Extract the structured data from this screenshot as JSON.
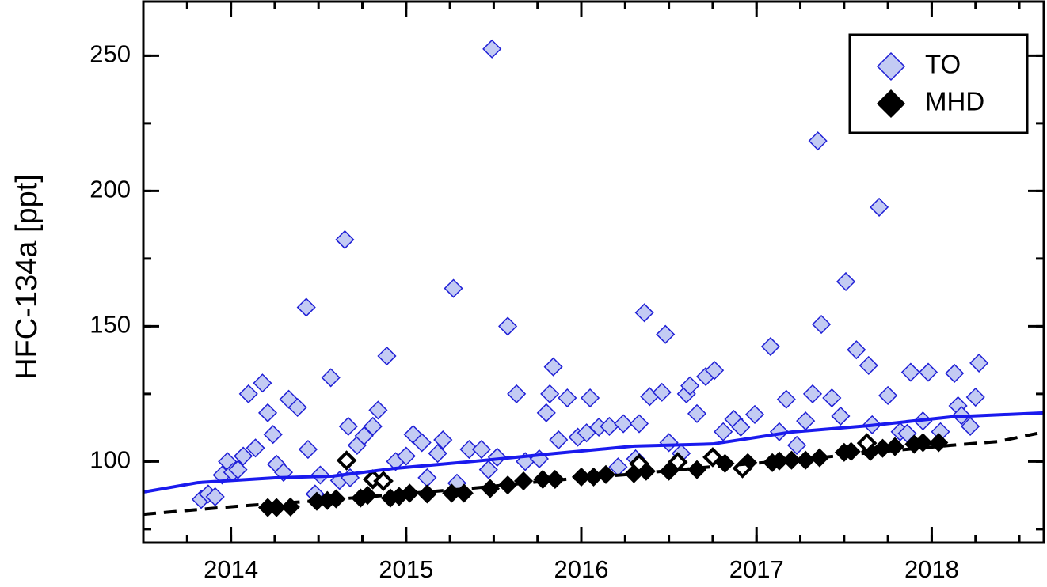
{
  "chart_data": {
    "type": "scatter",
    "y_label": "HFC-134a [ppt]",
    "xlim": [
      2013.5,
      2018.64
    ],
    "xticks": [
      2014,
      2015,
      2016,
      2017,
      2018
    ],
    "ylim": [
      70,
      270
    ],
    "yticks": [
      100,
      150,
      200,
      250
    ],
    "legend": "upper right",
    "series": [
      {
        "name": "TO",
        "kind": "marker",
        "marker": "diamond",
        "color": "#1f1fd6",
        "fill": "#c3cbf3",
        "x": [
          2013.83,
          2013.87,
          2013.91,
          2013.95,
          2013.98,
          2014.01,
          2014.04,
          2014.07,
          2014.1,
          2014.14,
          2014.18,
          2014.21,
          2014.24,
          2014.26,
          2014.3,
          2014.33,
          2014.38,
          2014.43,
          2014.44,
          2014.48,
          2014.51,
          2014.57,
          2014.62,
          2014.65,
          2014.67,
          2014.68,
          2014.72,
          2014.76,
          2014.81,
          2014.84,
          2014.89,
          2014.94,
          2015.0,
          2015.04,
          2015.09,
          2015.12,
          2015.18,
          2015.21,
          2015.27,
          2015.29,
          2015.36,
          2015.43,
          2015.47,
          2015.49,
          2015.52,
          2015.58,
          2015.63,
          2015.68,
          2015.76,
          2015.8,
          2015.82,
          2015.84,
          2015.87,
          2015.92,
          2015.98,
          2016.03,
          2016.05,
          2016.1,
          2016.16,
          2016.21,
          2016.24,
          2016.31,
          2016.33,
          2016.36,
          2016.39,
          2016.46,
          2016.48,
          2016.5,
          2016.57,
          2016.6,
          2016.62,
          2016.66,
          2016.71,
          2016.76,
          2016.81,
          2016.87,
          2016.91,
          2016.99,
          2017.08,
          2017.13,
          2017.17,
          2017.23,
          2017.28,
          2017.32,
          2017.35,
          2017.37,
          2017.43,
          2017.48,
          2017.51,
          2017.57,
          2017.64,
          2017.66,
          2017.7,
          2017.75,
          2017.82,
          2017.86,
          2017.88,
          2017.95,
          2017.98,
          2018.05,
          2018.13,
          2018.15,
          2018.17,
          2018.22,
          2018.25,
          2018.27
        ],
        "values": [
          86,
          88,
          87,
          95,
          100,
          96,
          97,
          102,
          125,
          105,
          129,
          118,
          110,
          99,
          96,
          123,
          120,
          157,
          104.5,
          88,
          95,
          131,
          93,
          182,
          113,
          94,
          106,
          109.5,
          113,
          119,
          139,
          100,
          102,
          110,
          107,
          94,
          103,
          108,
          164,
          92,
          104.5,
          104.5,
          97,
          252.5,
          101.6,
          150,
          125,
          100,
          101,
          118,
          125,
          135,
          108,
          123.5,
          109,
          110.6,
          123.5,
          112.7,
          113,
          98,
          114,
          101,
          114,
          155,
          124,
          125.6,
          147,
          107,
          103,
          125,
          128,
          117.7,
          131.4,
          133.7,
          111,
          115.6,
          112.7,
          117.4,
          142.5,
          111,
          123,
          106,
          115,
          125,
          218.5,
          150.7,
          123.5,
          116.8,
          166.5,
          141.3,
          135.5,
          113.6,
          194,
          124.4,
          111,
          110.4,
          133,
          115,
          133,
          111,
          132.6,
          120.6,
          117,
          113,
          123.8,
          136.4
        ]
      },
      {
        "name": "MHD",
        "kind": "marker",
        "marker": "diamond",
        "color": "#000000",
        "fill": "#000000",
        "x": [
          2014.21,
          2014.26,
          2014.34,
          2014.49,
          2014.55,
          2014.6,
          2014.74,
          2014.78,
          2014.91,
          2014.96,
          2015.02,
          2015.12,
          2015.26,
          2015.33,
          2015.48,
          2015.58,
          2015.67,
          2015.78,
          2015.85,
          2016.0,
          2016.07,
          2016.14,
          2016.3,
          2016.37,
          2016.5,
          2016.66,
          2016.82,
          2016.95,
          2017.09,
          2017.13,
          2017.2,
          2017.28,
          2017.36,
          2017.5,
          2017.54,
          2017.65,
          2017.72,
          2017.79,
          2017.9,
          2017.95,
          2018.04
        ],
        "values": [
          83,
          83,
          83.2,
          85.3,
          85.6,
          86.2,
          86.5,
          87.5,
          86.5,
          87.1,
          88.3,
          88,
          88.3,
          88.3,
          90,
          91.3,
          92.8,
          93.4,
          93.4,
          94.3,
          94.3,
          95.2,
          95.5,
          96.4,
          96.4,
          97,
          99.3,
          99.6,
          99.6,
          100.2,
          100.5,
          100.5,
          101.4,
          103.4,
          103.7,
          103.7,
          104.9,
          105.5,
          106.4,
          107,
          107
        ]
      },
      {
        "kind": "marker",
        "marker": "open-diamond",
        "color": "#000000",
        "fill": "#ffffff",
        "x": [
          2014.66,
          2014.81,
          2014.87,
          2016.33,
          2016.55,
          2016.75,
          2016.92,
          2017.63
        ],
        "values": [
          100.4,
          93.4,
          92.8,
          99.2,
          99.8,
          101.6,
          97.5,
          106.8
        ]
      },
      {
        "kind": "line",
        "style": "solid",
        "color": "#1a1aee",
        "x": [
          2013.5,
          2013.81,
          2014.26,
          2014.58,
          2014.94,
          2015.39,
          2015.85,
          2016.3,
          2016.75,
          2017.2,
          2017.65,
          2018.11,
          2018.64
        ],
        "values": [
          88.7,
          92.2,
          94,
          94.6,
          97.5,
          100.1,
          103,
          105.7,
          106.5,
          110.9,
          113.3,
          116.5,
          118
        ]
      },
      {
        "kind": "line",
        "style": "dashed",
        "color": "#000000",
        "x": [
          2013.5,
          2014.04,
          2014.49,
          2014.94,
          2015.39,
          2015.85,
          2016.3,
          2016.75,
          2017.2,
          2017.65,
          2018.11,
          2018.38,
          2018.64
        ],
        "values": [
          80.5,
          83.5,
          85.5,
          87.8,
          90.2,
          93.1,
          95.4,
          98.1,
          100.4,
          103.3,
          106,
          107.4,
          110.9
        ]
      }
    ]
  }
}
